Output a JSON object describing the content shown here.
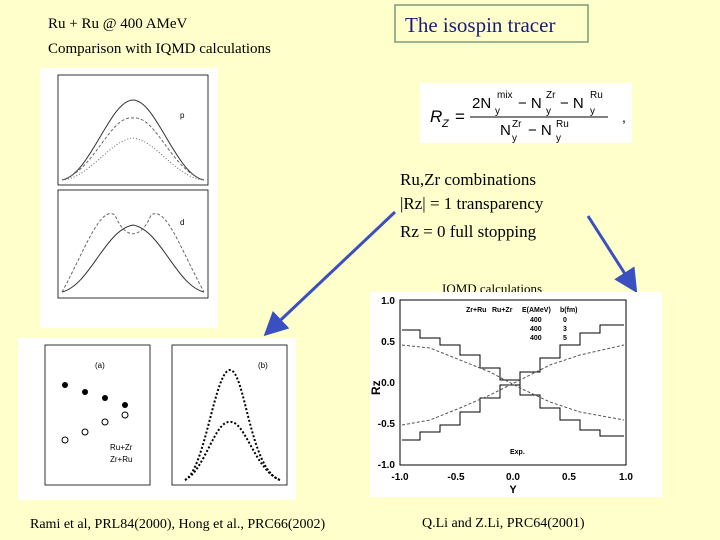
{
  "header": {
    "title_lines": [
      "Ru + Ru @ 400 AMeV",
      "Comparison with IQMD calculations"
    ],
    "box_title": "The isospin tracer"
  },
  "formula": {
    "lhs": "R",
    "lhs_sub": "Z",
    "eq": "=",
    "num": [
      "2N",
      "mix",
      "− N",
      "Zr",
      "− N",
      "Ru"
    ],
    "den": [
      "N",
      "Zr",
      "− N",
      "Ru"
    ],
    "y": "y",
    "tail": ","
  },
  "notes": [
    "Ru,Zr combinations",
    "|Rz|  = 1   transparency",
    "Rz = 0  full stopping"
  ],
  "iqmd_label": "IQMD calculations",
  "right_plot": {
    "y_label": "Rz",
    "x_label": "Y",
    "yticks": [
      "1.0",
      "0.5",
      "0.0",
      "-0.5",
      "-1.0"
    ],
    "xticks": [
      "-1.0",
      "-0.5",
      "0.0",
      "0.5",
      "1.0"
    ],
    "legend_header": [
      "Zr+Ru",
      "Ru+Zr",
      "E(AMeV)",
      "b(fm)"
    ],
    "legend_rows": [
      [
        "400",
        "0"
      ],
      [
        "400",
        "3"
      ],
      [
        "400",
        "5"
      ]
    ],
    "exp": "Exp."
  },
  "left_plot": {
    "panel_labels": [
      "(a)",
      "(b)"
    ],
    "legend": [
      "Ru+Zr",
      "Zr+Ru"
    ],
    "panel_top": "p",
    "panel_bottom": "d"
  },
  "captions": [
    "Rami et al, PRL84(2000), Hong et al., PRC66(2002)",
    "Q.Li and Z.Li, PRC64(2001)"
  ]
}
